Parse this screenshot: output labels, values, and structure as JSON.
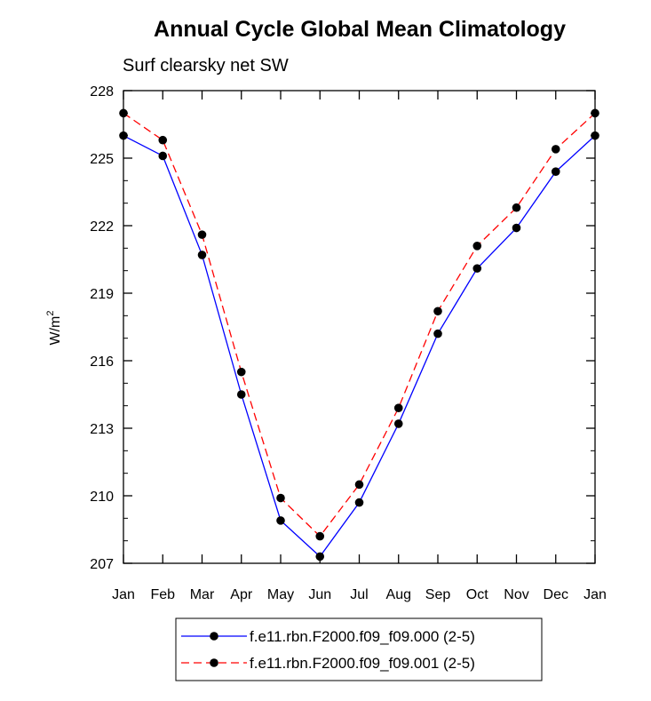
{
  "chart_data": {
    "type": "line",
    "title": "Annual Cycle Global Mean Climatology",
    "subtitle": "Surf clearsky net SW",
    "xlabel": "",
    "ylabel_base": "W/m",
    "ylabel_sup": "2",
    "categories": [
      "Jan",
      "Feb",
      "Mar",
      "Apr",
      "May",
      "Jun",
      "Jul",
      "Aug",
      "Sep",
      "Oct",
      "Nov",
      "Dec",
      "Jan"
    ],
    "ylim": [
      207,
      228
    ],
    "yticks": [
      207,
      210,
      213,
      216,
      219,
      222,
      225,
      228
    ],
    "yminor_step": 1,
    "series": [
      {
        "name": "f.e11.rbn.F2000.f09_f09.000 (2-5)",
        "color": "#0000ff",
        "dash": "solid",
        "values": [
          226.0,
          225.1,
          220.7,
          214.5,
          208.9,
          207.3,
          209.7,
          213.2,
          217.2,
          220.1,
          221.9,
          224.4,
          226.0
        ]
      },
      {
        "name": "f.e11.rbn.F2000.f09_f09.001 (2-5)",
        "color": "#ff0000",
        "dash": "dashed",
        "values": [
          227.0,
          225.8,
          221.6,
          215.5,
          209.9,
          208.2,
          210.5,
          213.9,
          218.2,
          221.1,
          222.8,
          225.4,
          227.0
        ]
      }
    ],
    "marker_color": "#000000",
    "legend_position": "bottom"
  }
}
